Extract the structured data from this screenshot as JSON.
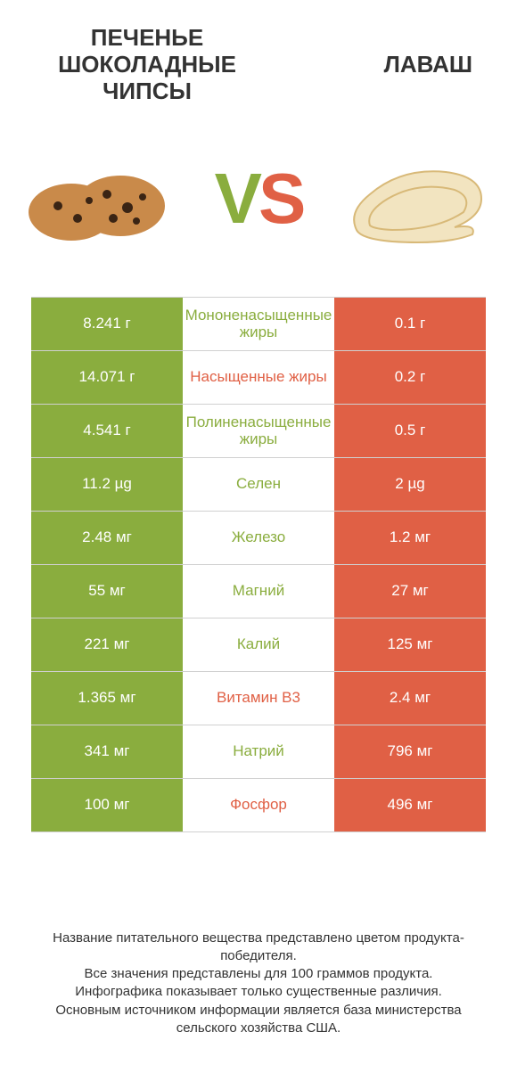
{
  "colors": {
    "green": "#8aad3e",
    "orange": "#e06045",
    "text": "#333333",
    "border": "#d0d0d0",
    "white": "#ffffff"
  },
  "header": {
    "left_title": "ПЕЧЕНЬЕ ШОКОЛАДНЫЕ ЧИПСЫ",
    "right_title": "ЛАВАШ",
    "vs_v": "V",
    "vs_s": "S",
    "left_image": "cookies-icon",
    "right_image": "lavash-icon"
  },
  "table": {
    "rows": [
      {
        "left": "8.241 г",
        "label": "Мононенасыщенные жиры",
        "right": "0.1 г",
        "winner": "left"
      },
      {
        "left": "14.071 г",
        "label": "Насыщенные жиры",
        "right": "0.2 г",
        "winner": "right"
      },
      {
        "left": "4.541 г",
        "label": "Полиненасыщенные жиры",
        "right": "0.5 г",
        "winner": "left"
      },
      {
        "left": "11.2 µg",
        "label": "Селен",
        "right": "2 µg",
        "winner": "left"
      },
      {
        "left": "2.48 мг",
        "label": "Железо",
        "right": "1.2 мг",
        "winner": "left"
      },
      {
        "left": "55 мг",
        "label": "Магний",
        "right": "27 мг",
        "winner": "left"
      },
      {
        "left": "221 мг",
        "label": "Калий",
        "right": "125 мг",
        "winner": "left"
      },
      {
        "left": "1.365 мг",
        "label": "Витамин B3",
        "right": "2.4 мг",
        "winner": "right"
      },
      {
        "left": "341 мг",
        "label": "Натрий",
        "right": "796 мг",
        "winner": "left"
      },
      {
        "left": "100 мг",
        "label": "Фосфор",
        "right": "496 мг",
        "winner": "right"
      }
    ]
  },
  "footer": {
    "line1": "Название питательного вещества представлено цветом продукта-победителя.",
    "line2": "Все значения представлены для 100 граммов продукта.",
    "line3": "Инфографика показывает только существенные различия.",
    "line4": "Основным источником информации является база министерства сельского хозяйства США."
  },
  "typography": {
    "title_fontsize": 26,
    "cell_fontsize": 17,
    "footer_fontsize": 15,
    "vs_fontsize": 80
  }
}
